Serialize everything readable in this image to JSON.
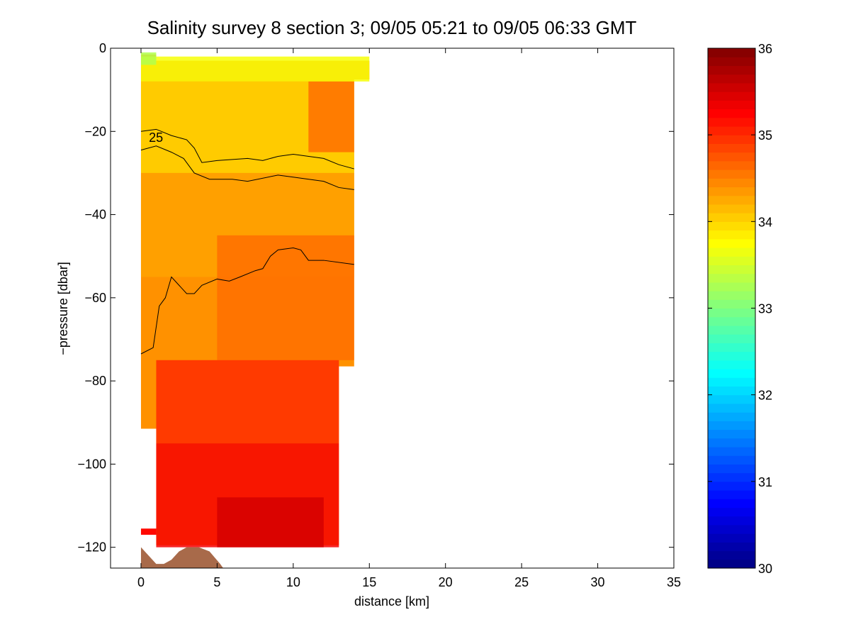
{
  "chart_data": {
    "type": "heatmap",
    "title": "Salinity survey 8 section 3; 09/05 05:21 to 09/05 06:33 GMT",
    "xlabel": "distance [km]",
    "ylabel": "−pressure [dbar]",
    "xlim": [
      -2,
      35
    ],
    "ylim": [
      -125,
      0
    ],
    "xticks": [
      0,
      5,
      10,
      15,
      20,
      25,
      30,
      35
    ],
    "xtick_labels": [
      "0",
      "5",
      "10",
      "15",
      "20",
      "25",
      "30",
      "35"
    ],
    "yticks": [
      0,
      -20,
      -40,
      -60,
      -80,
      -100,
      -120
    ],
    "ytick_labels": [
      "0",
      "−20",
      "−40",
      "−60",
      "−80",
      "−100",
      "−120"
    ],
    "grid": false,
    "colorbar": {
      "colormap": "jet",
      "range": [
        30,
        36
      ],
      "ticks": [
        30,
        31,
        32,
        33,
        34,
        35,
        36
      ],
      "tick_labels": [
        "30",
        "31",
        "32",
        "33",
        "34",
        "35",
        "36"
      ],
      "levels": 60
    },
    "salinity_field": {
      "regions": [
        {
          "desc": "surface",
          "x_range": [
            0,
            15
          ],
          "p_range": [
            -8,
            -2
          ],
          "value": 33.7
        },
        {
          "desc": "near-surface patch",
          "x_range": [
            0,
            1
          ],
          "p_range": [
            -4,
            -1
          ],
          "value": 33.3
        },
        {
          "desc": "upper layer",
          "x_range": [
            0,
            14
          ],
          "p_range": [
            -30,
            -8
          ],
          "value": 34.0
        },
        {
          "desc": "upper offshore warm patch",
          "x_range": [
            11,
            14
          ],
          "p_range": [
            -25,
            -8
          ],
          "value": 34.6
        },
        {
          "desc": "mid layer",
          "x_range": [
            0,
            14
          ],
          "p_range": [
            -55,
            -30
          ],
          "value": 34.3
        },
        {
          "desc": "mid offshore",
          "x_range": [
            5,
            14
          ],
          "p_range": [
            -75,
            -45
          ],
          "value": 34.6
        },
        {
          "desc": "lower layer",
          "x_range": [
            1,
            13
          ],
          "p_range": [
            -95,
            -75
          ],
          "value": 35.0
        },
        {
          "desc": "deep layer",
          "x_range": [
            1,
            13
          ],
          "p_range": [
            -120,
            -95
          ],
          "value": 35.3
        },
        {
          "desc": "deep core",
          "x_range": [
            5,
            12
          ],
          "p_range": [
            -120,
            -108
          ],
          "value": 35.5
        }
      ],
      "data_extent": [
        [
          0,
          -1.5
        ],
        [
          1,
          -1.5
        ],
        [
          1,
          -3
        ],
        [
          15,
          -3
        ],
        [
          15,
          -7.5
        ],
        [
          14,
          -7.5
        ],
        [
          14,
          -76.5
        ],
        [
          13,
          -76.5
        ],
        [
          13,
          -119.5
        ],
        [
          1,
          -119.5
        ],
        [
          1,
          -91.5
        ],
        [
          0,
          -91.5
        ]
      ],
      "isolated_segment": {
        "x_range": [
          0,
          1
        ],
        "p_range": [
          -117,
          -115.5
        ],
        "value": 35.2
      }
    },
    "contours": [
      {
        "label": "25",
        "label_at": [
          0.8,
          -22.5
        ],
        "points": [
          [
            0,
            -20
          ],
          [
            1,
            -19.5
          ],
          [
            2,
            -21
          ],
          [
            3,
            -22
          ],
          [
            3.5,
            -24
          ],
          [
            4,
            -27.5
          ],
          [
            5,
            -27
          ],
          [
            7,
            -26.5
          ],
          [
            8,
            -27
          ],
          [
            9,
            -26
          ],
          [
            10,
            -25.5
          ],
          [
            12,
            -26.5
          ],
          [
            13,
            -28
          ],
          [
            14,
            -29
          ]
        ]
      },
      {
        "label": "",
        "points": [
          [
            0,
            -24.5
          ],
          [
            1,
            -23.5
          ],
          [
            2,
            -25
          ],
          [
            2.8,
            -26.5
          ],
          [
            3.5,
            -30
          ],
          [
            4.5,
            -31.5
          ],
          [
            6,
            -31.5
          ],
          [
            7,
            -32
          ],
          [
            9,
            -30.5
          ],
          [
            10,
            -31
          ],
          [
            12,
            -32
          ],
          [
            13,
            -33.5
          ],
          [
            14,
            -34
          ]
        ]
      },
      {
        "label": "",
        "points": [
          [
            0,
            -73.5
          ],
          [
            0.8,
            -72
          ],
          [
            1.2,
            -62
          ],
          [
            1.6,
            -60
          ],
          [
            2,
            -55
          ],
          [
            2.5,
            -57
          ],
          [
            3,
            -59
          ],
          [
            3.5,
            -59
          ],
          [
            4,
            -57
          ],
          [
            5,
            -55.5
          ],
          [
            5.8,
            -56
          ],
          [
            6.5,
            -55
          ],
          [
            7.5,
            -53.5
          ],
          [
            8,
            -53
          ],
          [
            8.5,
            -50
          ],
          [
            9,
            -48.5
          ],
          [
            10,
            -48
          ],
          [
            10.5,
            -48.5
          ],
          [
            11,
            -51
          ],
          [
            12,
            -51
          ],
          [
            14,
            -52
          ]
        ]
      }
    ],
    "bathymetry": {
      "color": "#a86a4a",
      "points": [
        [
          0,
          -120
        ],
        [
          0.5,
          -122
        ],
        [
          1,
          -124
        ],
        [
          1.5,
          -124
        ],
        [
          2,
          -123
        ],
        [
          2.5,
          -121
        ],
        [
          3,
          -120
        ],
        [
          3.8,
          -120
        ],
        [
          4.5,
          -121
        ],
        [
          5.2,
          -124
        ],
        [
          5.4,
          -125
        ]
      ]
    }
  }
}
